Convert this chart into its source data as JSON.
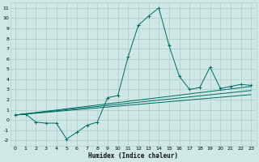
{
  "xlabel": "Humidex (Indice chaleur)",
  "ylabel": "",
  "bg_color": "#cde8e5",
  "grid_color": "#b0d0cc",
  "line_color": "#006b63",
  "xlim": [
    -0.5,
    23.5
  ],
  "ylim": [
    -2.5,
    11.5
  ],
  "xticks": [
    0,
    1,
    2,
    3,
    4,
    5,
    6,
    7,
    8,
    9,
    10,
    11,
    12,
    13,
    14,
    15,
    16,
    17,
    18,
    19,
    20,
    21,
    22,
    23
  ],
  "yticks": [
    -2,
    -1,
    0,
    1,
    2,
    3,
    4,
    5,
    6,
    7,
    8,
    9,
    10,
    11
  ],
  "main_series_x": [
    0,
    1,
    2,
    3,
    4,
    5,
    6,
    7,
    8,
    9,
    10,
    11,
    12,
    13,
    14,
    15,
    16,
    17,
    18,
    19,
    20,
    21,
    22,
    23
  ],
  "main_series_y": [
    0.5,
    0.6,
    -0.2,
    -0.3,
    -0.3,
    -1.85,
    -1.2,
    -0.5,
    -0.2,
    2.2,
    2.4,
    6.2,
    9.3,
    10.2,
    11.0,
    7.3,
    4.3,
    3.0,
    3.2,
    5.2,
    3.1,
    3.3,
    3.5,
    3.4
  ],
  "line1_x": [
    0,
    23
  ],
  "line1_y": [
    0.5,
    2.5
  ],
  "line2_x": [
    0,
    23
  ],
  "line2_y": [
    0.5,
    2.9
  ],
  "line3_x": [
    0,
    23
  ],
  "line3_y": [
    0.5,
    3.3
  ]
}
